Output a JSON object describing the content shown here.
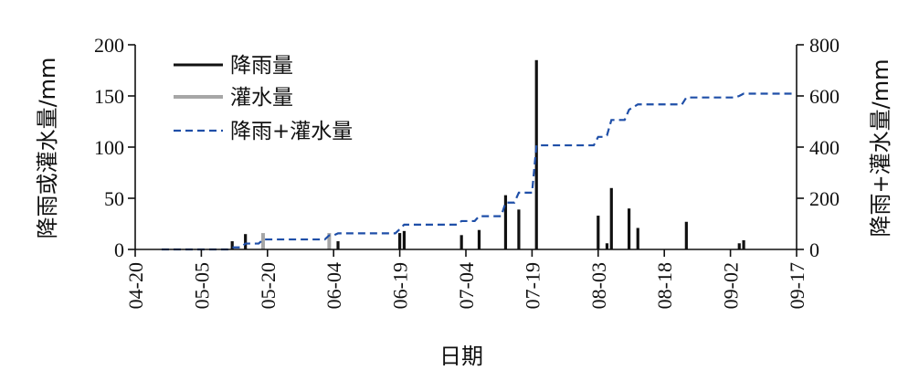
{
  "chart_data": {
    "type": "bar",
    "xlabel": "日期",
    "ylabel_left": "降雨或灌水量/mm",
    "ylabel_right": "降雨+灌水量/mm",
    "ylim_left": [
      0,
      200
    ],
    "ylim_right": [
      0,
      800
    ],
    "yticks_left": [
      "0",
      "50",
      "100",
      "150",
      "200"
    ],
    "yticks_right": [
      "0",
      "200",
      "400",
      "600",
      "800"
    ],
    "xticks": [
      "04-20",
      "05-05",
      "05-20",
      "06-04",
      "06-19",
      "07-04",
      "07-19",
      "08-03",
      "08-18",
      "09-02",
      "09-17"
    ],
    "x_range": [
      "04-20",
      "09-17"
    ],
    "grid": false,
    "legend_position": "top-left",
    "series": [
      {
        "name": "降雨量",
        "kind": "bar",
        "axis": "left",
        "color": "#111111",
        "points": [
          [
            "05-12",
            8
          ],
          [
            "05-15",
            15
          ],
          [
            "06-05",
            8
          ],
          [
            "06-19",
            16
          ],
          [
            "06-20",
            18
          ],
          [
            "07-03",
            14
          ],
          [
            "07-07",
            19
          ],
          [
            "07-13",
            53
          ],
          [
            "07-16",
            39
          ],
          [
            "07-20",
            185
          ],
          [
            "08-03",
            33
          ],
          [
            "08-05",
            6
          ],
          [
            "08-06",
            60
          ],
          [
            "08-10",
            40
          ],
          [
            "08-12",
            21
          ],
          [
            "08-23",
            27
          ],
          [
            "09-04",
            6
          ],
          [
            "09-05",
            9
          ]
        ]
      },
      {
        "name": "灌水量",
        "kind": "bar",
        "axis": "left",
        "color": "#a6a6a6",
        "points": [
          [
            "05-19",
            16
          ],
          [
            "06-03",
            16
          ]
        ]
      },
      {
        "name": "降雨+灌水量",
        "kind": "line",
        "style": "dashed",
        "axis": "right",
        "color": "#1f4fa8",
        "points": [
          [
            "04-26",
            0
          ],
          [
            "05-11",
            0
          ],
          [
            "05-12",
            8
          ],
          [
            "05-14",
            8
          ],
          [
            "05-15",
            23
          ],
          [
            "05-18",
            23
          ],
          [
            "05-19",
            39
          ],
          [
            "06-02",
            39
          ],
          [
            "06-03",
            55
          ],
          [
            "06-04",
            55
          ],
          [
            "06-05",
            63
          ],
          [
            "06-18",
            63
          ],
          [
            "06-19",
            79
          ],
          [
            "06-20",
            97
          ],
          [
            "07-02",
            97
          ],
          [
            "07-03",
            111
          ],
          [
            "07-06",
            111
          ],
          [
            "07-07",
            130
          ],
          [
            "07-12",
            130
          ],
          [
            "07-13",
            183
          ],
          [
            "07-15",
            183
          ],
          [
            "07-16",
            222
          ],
          [
            "07-19",
            222
          ],
          [
            "07-20",
            407
          ],
          [
            "08-02",
            407
          ],
          [
            "08-03",
            440
          ],
          [
            "08-04",
            440
          ],
          [
            "08-05",
            446
          ],
          [
            "08-06",
            506
          ],
          [
            "08-09",
            506
          ],
          [
            "08-10",
            546
          ],
          [
            "08-12",
            567
          ],
          [
            "08-22",
            567
          ],
          [
            "08-23",
            594
          ],
          [
            "09-03",
            594
          ],
          [
            "09-04",
            600
          ],
          [
            "09-05",
            609
          ],
          [
            "09-17",
            609
          ]
        ]
      }
    ]
  }
}
